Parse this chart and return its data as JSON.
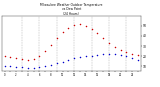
{
  "title_line1": "Milwaukee Weather Outdoor Temperature",
  "title_line2": "vs Dew Point",
  "title_line3": "(24 Hours)",
  "background_color": "#ffffff",
  "grid_color": "#888888",
  "temp_color": "#cc0000",
  "dew_color": "#0000cc",
  "dew_color2": "#000000",
  "hours": [
    0,
    1,
    2,
    3,
    4,
    5,
    6,
    7,
    8,
    9,
    10,
    11,
    12,
    13,
    14,
    15,
    16,
    17,
    18,
    19,
    20,
    21,
    22,
    23
  ],
  "temp": [
    20,
    19,
    18,
    17,
    16,
    17,
    20,
    25,
    31,
    38,
    44,
    48,
    51,
    52,
    50,
    47,
    43,
    38,
    33,
    29,
    26,
    24,
    22,
    21
  ],
  "dew": [
    10,
    10,
    9,
    9,
    8,
    8,
    9,
    10,
    11,
    13,
    14,
    16,
    18,
    19,
    20,
    20,
    21,
    22,
    22,
    22,
    21,
    20,
    18,
    16
  ],
  "ylim_min": 5,
  "ylim_max": 60,
  "xlim_min": -0.5,
  "xlim_max": 23.5,
  "ytick_vals": [
    10,
    20,
    30,
    40,
    50
  ],
  "vgrid_positions": [
    3,
    6,
    9,
    12,
    15,
    18,
    21
  ],
  "dot_size": 1.2,
  "fig_width": 1.6,
  "fig_height": 0.87,
  "dpi": 100
}
